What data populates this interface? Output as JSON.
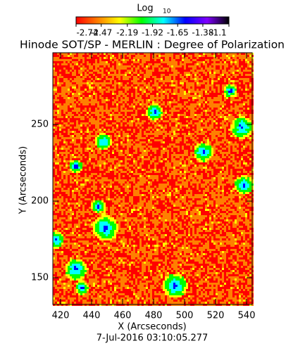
{
  "chart_data": {
    "type": "image",
    "title": "Hinode SOT/SP - MERLIN : Degree of Polarization",
    "colorbar": {
      "label": "Log",
      "label_subscript": "10",
      "lim": [
        -2.74,
        -1.1
      ],
      "ticks": [
        -2.74,
        -2.47,
        -2.19,
        -1.92,
        -1.65,
        -1.38,
        -1.1
      ],
      "colormap": [
        "#ff0000",
        "#ff7f00",
        "#ffff00",
        "#00ff00",
        "#00ffff",
        "#0000ff",
        "#7f00ff",
        "#000000"
      ]
    },
    "x_label": "X (Arcseconds)",
    "y_label": "Y (Arcseconds)",
    "xlim": [
      415,
      543.6
    ],
    "ylim": [
      132.6,
      296.8
    ],
    "xticks": [
      420,
      440,
      460,
      480,
      500,
      520,
      540
    ],
    "yticks": [
      150,
      200,
      250
    ],
    "date": "7-Jul-2016 03:10:05.277"
  }
}
